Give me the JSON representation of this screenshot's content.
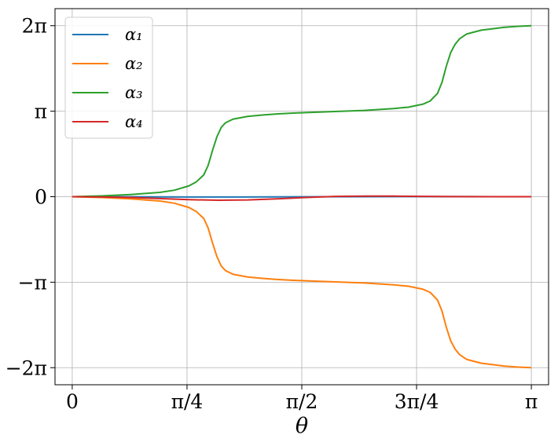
{
  "chart_data": {
    "type": "line",
    "title": "",
    "xlabel": "θ",
    "ylabel": "",
    "xlim": [
      -0.1178,
      3.2594
    ],
    "ylim": [
      -6.91,
      6.91
    ],
    "grid": true,
    "legend_position": "top-left",
    "x_ticks": [
      {
        "value": 0,
        "label": "0"
      },
      {
        "value": 0.7854,
        "label": "π/4"
      },
      {
        "value": 1.5708,
        "label": "π/2"
      },
      {
        "value": 2.3562,
        "label": "3π/4"
      },
      {
        "value": 3.1416,
        "label": "π"
      }
    ],
    "y_ticks": [
      {
        "value": 6.2832,
        "label": "2π"
      },
      {
        "value": 3.1416,
        "label": "π"
      },
      {
        "value": 0,
        "label": "0"
      },
      {
        "value": -3.1416,
        "label": "−π"
      },
      {
        "value": -6.2832,
        "label": "−2π"
      }
    ],
    "series": [
      {
        "name": "α₁",
        "color": "#1f77b4",
        "x": [
          0,
          0.3927,
          0.7854,
          1.1781,
          1.5708,
          1.9635,
          2.3562,
          2.7489,
          3.1416
        ],
        "y": [
          0,
          -0.005,
          -0.01,
          -0.01,
          -0.005,
          0.0,
          0.005,
          0.002,
          0
        ]
      },
      {
        "name": "α₂",
        "color": "#ff7f0e",
        "x": [
          0,
          0.2,
          0.4,
          0.6,
          0.7,
          0.8,
          0.85,
          0.9,
          0.93,
          0.96,
          0.99,
          1.02,
          1.05,
          1.1,
          1.2,
          1.3,
          1.4,
          1.5,
          1.6,
          1.8,
          2.0,
          2.2,
          2.3,
          2.4,
          2.45,
          2.5,
          2.53,
          2.56,
          2.59,
          2.62,
          2.65,
          2.7,
          2.8,
          2.95,
          3.05,
          3.1416
        ],
        "y": [
          0,
          -0.03,
          -0.08,
          -0.16,
          -0.24,
          -0.4,
          -0.55,
          -0.8,
          -1.15,
          -1.7,
          -2.2,
          -2.55,
          -2.72,
          -2.85,
          -2.95,
          -3.0,
          -3.04,
          -3.07,
          -3.09,
          -3.13,
          -3.17,
          -3.24,
          -3.29,
          -3.4,
          -3.52,
          -3.8,
          -4.2,
          -4.8,
          -5.3,
          -5.6,
          -5.8,
          -5.98,
          -6.12,
          -6.22,
          -6.26,
          -6.2832
        ]
      },
      {
        "name": "α₃",
        "color": "#2ca02c",
        "x": [
          0,
          0.2,
          0.4,
          0.6,
          0.7,
          0.8,
          0.85,
          0.9,
          0.93,
          0.96,
          0.99,
          1.02,
          1.05,
          1.1,
          1.2,
          1.3,
          1.4,
          1.5,
          1.6,
          1.8,
          2.0,
          2.2,
          2.3,
          2.4,
          2.45,
          2.5,
          2.53,
          2.56,
          2.59,
          2.62,
          2.65,
          2.7,
          2.8,
          2.95,
          3.05,
          3.1416
        ],
        "y": [
          0,
          0.03,
          0.08,
          0.16,
          0.24,
          0.4,
          0.55,
          0.8,
          1.15,
          1.7,
          2.2,
          2.55,
          2.72,
          2.85,
          2.95,
          3.0,
          3.04,
          3.07,
          3.09,
          3.13,
          3.17,
          3.24,
          3.29,
          3.4,
          3.52,
          3.8,
          4.2,
          4.8,
          5.3,
          5.6,
          5.8,
          5.98,
          6.12,
          6.22,
          6.26,
          6.2832
        ]
      },
      {
        "name": "α₄",
        "color": "#d62728",
        "x": [
          0,
          0.2,
          0.4,
          0.6,
          0.8,
          1.0,
          1.2,
          1.4,
          1.6,
          1.8,
          2.0,
          2.2,
          2.4,
          2.6,
          2.8,
          3.0,
          3.1416
        ],
        "y": [
          0,
          -0.01,
          -0.03,
          -0.07,
          -0.11,
          -0.13,
          -0.12,
          -0.08,
          -0.03,
          0.01,
          0.02,
          0.02,
          0.01,
          0.005,
          0.0,
          0.0,
          0
        ]
      }
    ]
  }
}
